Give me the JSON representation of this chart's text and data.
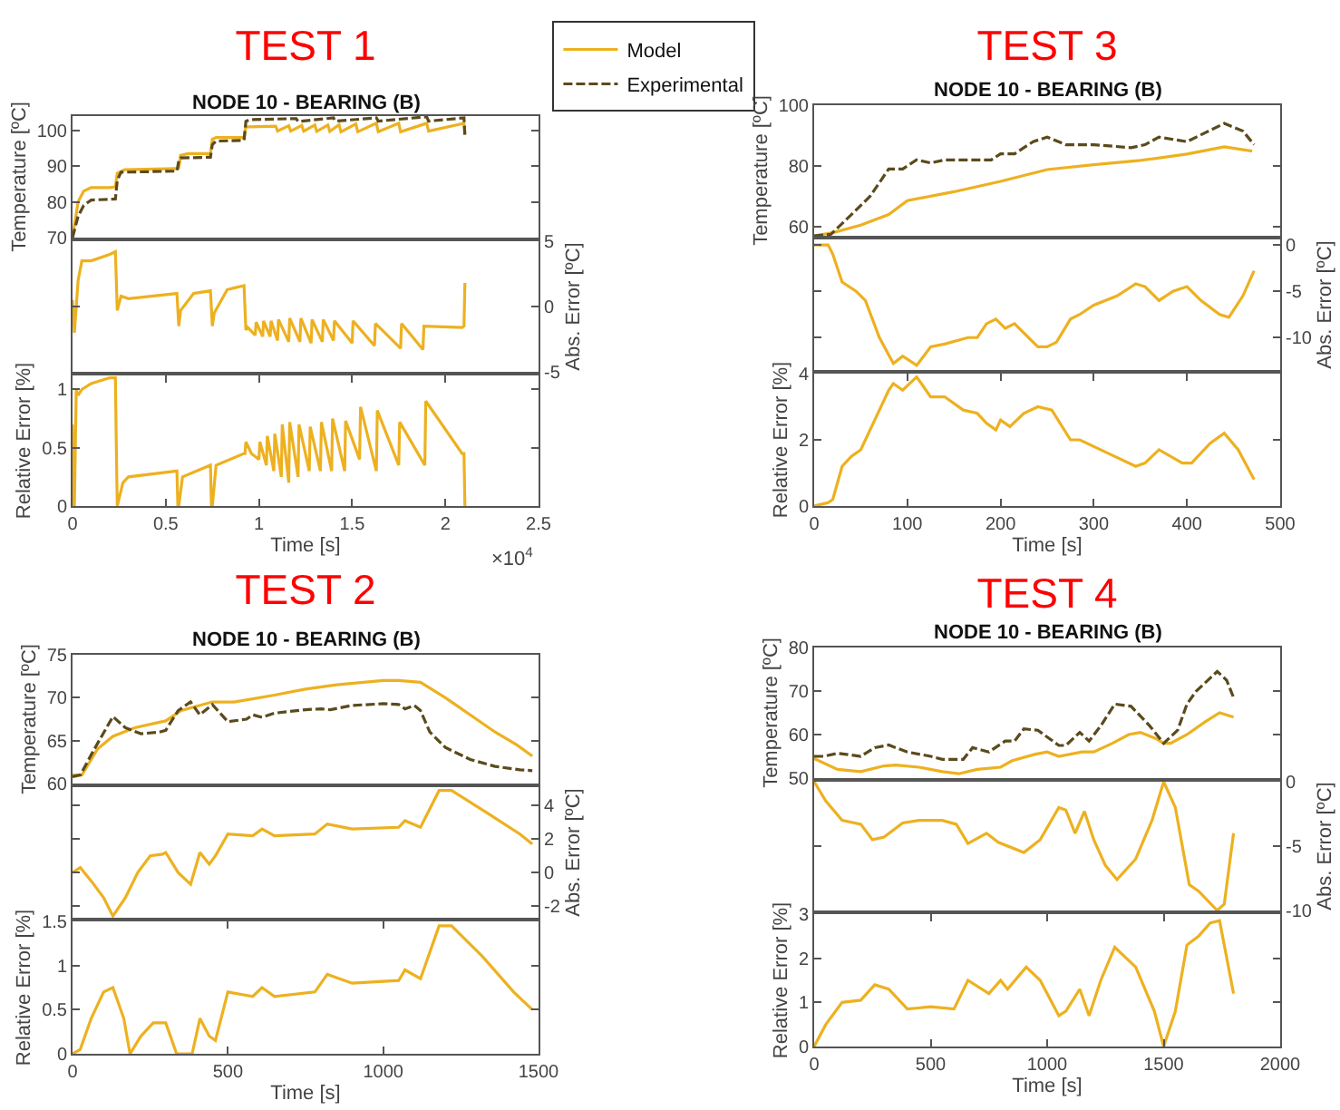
{
  "chart_data": [
    {
      "type": "line",
      "title": "TEST 1",
      "subtitle": "NODE 10 - BEARING (B)",
      "ylabel": "Temperature [ºC]",
      "legend": "top",
      "tick_labels": "y",
      "xlim": [
        0,
        2.5
      ],
      "ylim": [
        70,
        104
      ],
      "yticks": [
        70,
        80,
        90,
        100
      ],
      "series": [
        {
          "name": "Model",
          "color": "#edb120",
          "line_style": "solid",
          "x": [
            0,
            0.03,
            0.06,
            0.1,
            0.2,
            0.23,
            0.24,
            0.28,
            0.56,
            0.57,
            0.58,
            0.62,
            0.74,
            0.75,
            0.77,
            0.82,
            0.92,
            0.93,
            0.95,
            1.09,
            1.1,
            1.16,
            1.17,
            1.23,
            1.24,
            1.3,
            1.31,
            1.37,
            1.38,
            1.43,
            1.44,
            1.52,
            1.53,
            1.63,
            1.64,
            1.75,
            1.76,
            1.9,
            1.91,
            2.1,
            2.105
          ],
          "values": [
            70,
            80,
            83,
            84,
            84,
            84.2,
            88,
            89,
            89.3,
            89.5,
            93,
            93.5,
            93.5,
            97.5,
            98,
            98,
            98,
            101,
            101,
            101.2,
            99.8,
            101.3,
            99.8,
            101.4,
            99.8,
            101.5,
            99.7,
            101.5,
            99.7,
            101.6,
            99.6,
            101.8,
            99.6,
            102,
            99.6,
            102,
            99.6,
            102,
            99.8,
            102,
            99
          ]
        },
        {
          "name": "Experimental",
          "color": "#5b4a1c",
          "line_style": "dashed",
          "x": [
            0,
            0.03,
            0.06,
            0.1,
            0.23,
            0.24,
            0.26,
            0.56,
            0.57,
            0.58,
            0.74,
            0.75,
            0.77,
            0.92,
            0.93,
            0.95,
            1.2,
            1.21,
            1.4,
            1.41,
            1.63,
            1.64,
            1.9,
            1.91,
            2.1,
            2.105
          ],
          "values": [
            70,
            76,
            79,
            80.5,
            80.8,
            86,
            88.3,
            88.6,
            91.5,
            92.3,
            92.5,
            96,
            97,
            97.2,
            102.5,
            103,
            103.3,
            102.5,
            103.5,
            102.6,
            103.5,
            102.6,
            103.8,
            102.6,
            103.5,
            98.5
          ]
        }
      ]
    },
    {
      "type": "line",
      "ylabel": "Abs. Error [ºC]",
      "tick_labels": "y",
      "xlim": [
        0,
        2.5
      ],
      "ylim": [
        -5,
        5
      ],
      "yticks": [
        -5,
        0,
        5
      ],
      "series": [
        {
          "color": "#edb120",
          "x": [
            0,
            0.01,
            0.03,
            0.05,
            0.1,
            0.2,
            0.23,
            0.24,
            0.26,
            0.3,
            0.56,
            0.57,
            0.58,
            0.65,
            0.74,
            0.75,
            0.76,
            0.83,
            0.92,
            0.93,
            0.94,
            0.98,
            0.985,
            1.02,
            1.025,
            1.06,
            1.065,
            1.1,
            1.105,
            1.16,
            1.165,
            1.22,
            1.225,
            1.28,
            1.285,
            1.34,
            1.345,
            1.4,
            1.405,
            1.5,
            1.505,
            1.62,
            1.625,
            1.76,
            1.765,
            1.88,
            1.885,
            2.09,
            2.1,
            2.105
          ],
          "values": [
            0.5,
            -2,
            2,
            3.5,
            3.5,
            4,
            4.2,
            -0.3,
            0.8,
            0.6,
            1,
            -1.5,
            -0.3,
            1,
            1.2,
            -1.5,
            -0.5,
            1.3,
            1.6,
            -1.8,
            -1.6,
            -2.2,
            -1.2,
            -2.3,
            -1.1,
            -2.3,
            -1.1,
            -2.6,
            -1.0,
            -2.7,
            -0.9,
            -2.7,
            -0.9,
            -2.8,
            -1.0,
            -2.7,
            -1.0,
            -2.6,
            -1.1,
            -2.8,
            -1.1,
            -3.0,
            -1.3,
            -3.2,
            -1.3,
            -3.3,
            -1.5,
            -1.6,
            -1.5,
            1.8
          ]
        }
      ]
    },
    {
      "type": "line",
      "ylabel": "Relative Error [%]",
      "xlabel": "Time [s]",
      "annotations": [
        "×10$^{4}$"
      ],
      "xlim": [
        0,
        2.5
      ],
      "xticks": [
        0,
        0.5,
        1,
        1.5,
        2,
        2.5
      ],
      "ylim": [
        0,
        1.12
      ],
      "yticks": [
        0,
        0.5,
        1
      ],
      "series": [
        {
          "color": "#edb120",
          "x": [
            0,
            0.005,
            0.01,
            0.02,
            0.03,
            0.05,
            0.1,
            0.2,
            0.23,
            0.235,
            0.24,
            0.27,
            0.3,
            0.56,
            0.565,
            0.57,
            0.59,
            0.74,
            0.745,
            0.75,
            0.77,
            0.92,
            0.925,
            0.93,
            0.96,
            1.0,
            1.005,
            1.04,
            1.045,
            1.08,
            1.085,
            1.12,
            1.125,
            1.16,
            1.165,
            1.21,
            1.215,
            1.27,
            1.275,
            1.33,
            1.335,
            1.39,
            1.395,
            1.46,
            1.465,
            1.54,
            1.545,
            1.63,
            1.635,
            1.75,
            1.755,
            1.89,
            1.895,
            2.09,
            2.1,
            2.105
          ],
          "values": [
            0.7,
            0,
            0,
            1.0,
            0.95,
            1.0,
            1.05,
            1.1,
            1.1,
            0.5,
            0,
            0.2,
            0.25,
            0.3,
            0,
            0,
            0.25,
            0.35,
            0,
            0,
            0.35,
            0.45,
            0.45,
            0.55,
            0.45,
            0.4,
            0.55,
            0.35,
            0.6,
            0.3,
            0.62,
            0.25,
            0.7,
            0.2,
            0.72,
            0.25,
            0.7,
            0.3,
            0.68,
            0.3,
            0.72,
            0.3,
            0.75,
            0.3,
            0.73,
            0.4,
            0.85,
            0.3,
            0.82,
            0.35,
            0.72,
            0.35,
            0.9,
            0.45,
            0.45,
            0
          ]
        }
      ]
    },
    {
      "type": "line",
      "title": "TEST 3",
      "subtitle": "NODE 10 - BEARING (B)",
      "ylabel": "Temperature [ºC]",
      "tick_labels": "y",
      "xlim": [
        0,
        500
      ],
      "ylim": [
        57,
        100
      ],
      "yticks": [
        60,
        80,
        100
      ],
      "series": [
        {
          "color": "#edb120",
          "line_style": "solid",
          "x": [
            0,
            20,
            50,
            80,
            100,
            150,
            200,
            250,
            300,
            350,
            400,
            440,
            470
          ],
          "values": [
            57,
            58,
            60.5,
            64,
            68.6,
            71.5,
            74.9,
            78.8,
            80.4,
            81.8,
            83.9,
            86.3,
            84.9
          ]
        },
        {
          "color": "#5b4a1c",
          "line_style": "dashed",
          "x": [
            0,
            18,
            40,
            60,
            80,
            95,
            110,
            125,
            140,
            190,
            200,
            215,
            235,
            250,
            270,
            300,
            340,
            355,
            370,
            400,
            420,
            440,
            460,
            472
          ],
          "values": [
            57,
            57.5,
            64,
            70,
            79,
            79,
            82,
            81,
            82,
            82,
            84,
            84,
            88,
            89.5,
            87,
            87,
            86,
            87,
            89.5,
            88,
            91,
            94,
            91.5,
            87
          ]
        }
      ]
    },
    {
      "type": "line",
      "ylabel": "Abs. Error [ºC]",
      "tick_labels": "y",
      "xlim": [
        0,
        500
      ],
      "ylim": [
        -13.5,
        0.6
      ],
      "yticks": [
        -10,
        -5,
        0
      ],
      "series": [
        {
          "color": "#edb120",
          "x": [
            0,
            15,
            20,
            30,
            45,
            55,
            70,
            85,
            95,
            110,
            125,
            140,
            165,
            175,
            185,
            195,
            205,
            215,
            230,
            240,
            250,
            260,
            275,
            285,
            300,
            325,
            345,
            355,
            370,
            385,
            400,
            415,
            435,
            445,
            460,
            472
          ],
          "values": [
            0,
            0,
            -1,
            -4,
            -5,
            -6,
            -10,
            -12.8,
            -12,
            -13,
            -11,
            -10.7,
            -10,
            -10,
            -8.5,
            -8,
            -9,
            -8.5,
            -10,
            -11,
            -11,
            -10.5,
            -8,
            -7.5,
            -6.5,
            -5.5,
            -4.2,
            -4.5,
            -6,
            -5,
            -4.5,
            -6,
            -7.5,
            -7.8,
            -5.5,
            -2.8
          ]
        }
      ]
    },
    {
      "type": "line",
      "ylabel": "Relative Error [%]",
      "xlabel": "Time [s]",
      "xlim": [
        0,
        500
      ],
      "xticks": [
        0,
        100,
        200,
        300,
        400,
        500
      ],
      "ylim": [
        0,
        4
      ],
      "yticks": [
        0,
        2,
        4
      ],
      "series": [
        {
          "color": "#edb120",
          "x": [
            0,
            15,
            20,
            30,
            40,
            50,
            65,
            80,
            85,
            95,
            110,
            125,
            140,
            160,
            175,
            185,
            195,
            200,
            210,
            225,
            240,
            255,
            275,
            285,
            315,
            345,
            355,
            370,
            395,
            405,
            425,
            440,
            455,
            472
          ],
          "values": [
            0,
            0.1,
            0.2,
            1.2,
            1.5,
            1.7,
            2.6,
            3.5,
            3.7,
            3.5,
            3.9,
            3.3,
            3.3,
            2.9,
            2.8,
            2.5,
            2.3,
            2.6,
            2.4,
            2.8,
            3.0,
            2.9,
            2.0,
            2.0,
            1.6,
            1.2,
            1.3,
            1.7,
            1.3,
            1.3,
            1.9,
            2.2,
            1.7,
            0.8
          ]
        }
      ]
    },
    {
      "type": "line",
      "title": "TEST 2",
      "subtitle": "NODE 10 - BEARING (B)",
      "ylabel": "Temperature [ºC]",
      "tick_labels": "y",
      "xlim": [
        0,
        1500
      ],
      "ylim": [
        60,
        75
      ],
      "yticks": [
        60,
        65,
        70,
        75
      ],
      "series": [
        {
          "color": "#edb120",
          "line_style": "solid",
          "x": [
            0,
            30,
            80,
            130,
            200,
            300,
            350,
            450,
            520,
            650,
            750,
            850,
            1000,
            1050,
            1120,
            1200,
            1280,
            1360,
            1430,
            1480
          ],
          "values": [
            61,
            61,
            64,
            65.5,
            66.5,
            67.3,
            68.5,
            69.5,
            69.5,
            70.3,
            71,
            71.5,
            72,
            72,
            71.8,
            70,
            68,
            66,
            64.5,
            63.2
          ]
        },
        {
          "color": "#5b4a1c",
          "line_style": "dashed",
          "x": [
            0,
            25,
            70,
            130,
            170,
            220,
            280,
            300,
            340,
            380,
            410,
            450,
            500,
            560,
            580,
            610,
            650,
            750,
            800,
            830,
            900,
            1000,
            1050,
            1070,
            1100,
            1120,
            1150,
            1200,
            1280,
            1360,
            1440,
            1480
          ],
          "values": [
            60.8,
            61,
            64,
            67.8,
            66.5,
            65.8,
            66,
            66.2,
            68.5,
            69.5,
            68,
            69.2,
            67.2,
            67.5,
            68,
            67.7,
            68.2,
            68.6,
            68.7,
            68.6,
            69.1,
            69.3,
            69.2,
            68.7,
            69.1,
            68.5,
            66,
            64.2,
            62.8,
            62,
            61.6,
            61.5
          ]
        }
      ]
    },
    {
      "type": "line",
      "ylabel": "Abs. Error [ºC]",
      "tick_labels": "y",
      "xlim": [
        0,
        1500
      ],
      "ylim": [
        -2.7,
        5.1
      ],
      "yticks": [
        -2,
        0,
        2,
        4
      ],
      "series": [
        {
          "color": "#edb120",
          "x": [
            0,
            25,
            60,
            100,
            130,
            170,
            210,
            250,
            290,
            300,
            340,
            380,
            410,
            440,
            460,
            500,
            580,
            610,
            650,
            780,
            820,
            900,
            1050,
            1070,
            1120,
            1180,
            1220,
            1340,
            1440,
            1480
          ],
          "values": [
            0,
            0.3,
            -0.5,
            -1.5,
            -2.6,
            -1.5,
            0,
            1,
            1.1,
            1.2,
            0,
            -0.7,
            1.2,
            0.5,
            1,
            2.3,
            2.2,
            2.6,
            2.2,
            2.3,
            2.9,
            2.6,
            2.7,
            3.1,
            2.7,
            4.9,
            4.9,
            3.5,
            2.3,
            1.7
          ]
        }
      ]
    },
    {
      "type": "line",
      "ylabel": "Relative Error [%]",
      "xlabel": "Time [s]",
      "xlim": [
        0,
        1500
      ],
      "xticks": [
        0,
        500,
        1000,
        1500
      ],
      "ylim": [
        0,
        1.5
      ],
      "yticks": [
        0,
        0.5,
        1,
        1.5
      ],
      "series": [
        {
          "color": "#edb120",
          "x": [
            0,
            25,
            60,
            100,
            130,
            165,
            185,
            220,
            260,
            300,
            335,
            385,
            410,
            440,
            460,
            500,
            580,
            610,
            650,
            780,
            820,
            900,
            1050,
            1070,
            1120,
            1180,
            1220,
            1320,
            1420,
            1480
          ],
          "values": [
            0,
            0.05,
            0.4,
            0.7,
            0.75,
            0.4,
            0,
            0.2,
            0.35,
            0.35,
            0,
            0,
            0.4,
            0.2,
            0.15,
            0.7,
            0.65,
            0.75,
            0.65,
            0.7,
            0.9,
            0.8,
            0.83,
            0.95,
            0.85,
            1.45,
            1.45,
            1.1,
            0.7,
            0.5
          ]
        }
      ]
    },
    {
      "type": "line",
      "title": "TEST 4",
      "subtitle": "NODE 10 - BEARING (B)",
      "ylabel": "Temperature [ºC]",
      "tick_labels": "y",
      "xlim": [
        0,
        2000
      ],
      "ylim": [
        50,
        80
      ],
      "yticks": [
        50,
        60,
        70,
        80
      ],
      "series": [
        {
          "color": "#edb120",
          "line_style": "solid",
          "x": [
            0,
            100,
            200,
            300,
            350,
            450,
            550,
            620,
            700,
            800,
            850,
            950,
            1000,
            1050,
            1150,
            1200,
            1280,
            1350,
            1400,
            1470,
            1500,
            1530,
            1600,
            1680,
            1740,
            1800
          ],
          "values": [
            54.5,
            52,
            51.5,
            52.8,
            53,
            52.5,
            51.5,
            51,
            52,
            52.5,
            54,
            55.5,
            56,
            55,
            56,
            56,
            58,
            60,
            60.5,
            59,
            58,
            58,
            60,
            63,
            65,
            64
          ]
        },
        {
          "color": "#5b4a1c",
          "line_style": "dashed",
          "x": [
            0,
            40,
            100,
            200,
            260,
            320,
            400,
            500,
            550,
            640,
            680,
            750,
            820,
            860,
            900,
            960,
            1050,
            1080,
            1140,
            1180,
            1230,
            1290,
            1360,
            1440,
            1500,
            1560,
            1600,
            1640,
            1700,
            1730,
            1770,
            1800
          ],
          "values": [
            55,
            55,
            55.7,
            55,
            57,
            57.6,
            56,
            55,
            54.3,
            54.3,
            57,
            56,
            58.5,
            58.5,
            61.3,
            61,
            57.5,
            57.5,
            60.5,
            58.5,
            62,
            67,
            66.5,
            62,
            58,
            61,
            67,
            70,
            73,
            74.5,
            72.5,
            68.5
          ]
        }
      ]
    },
    {
      "type": "line",
      "ylabel": "Abs. Error [ºC]",
      "tick_labels": "y",
      "xlim": [
        0,
        2000
      ],
      "ylim": [
        -10,
        0
      ],
      "yticks": [
        -10,
        -5,
        0
      ],
      "series": [
        {
          "color": "#edb120",
          "x": [
            0,
            50,
            120,
            200,
            250,
            300,
            380,
            450,
            550,
            610,
            660,
            740,
            790,
            900,
            970,
            1050,
            1080,
            1120,
            1160,
            1200,
            1250,
            1300,
            1380,
            1450,
            1500,
            1550,
            1610,
            1650,
            1730,
            1760,
            1800
          ],
          "values": [
            0,
            -1.5,
            -3,
            -3.3,
            -4.5,
            -4.3,
            -3.2,
            -3,
            -3,
            -3.3,
            -4.8,
            -4,
            -4.7,
            -5.5,
            -4.5,
            -2,
            -2.2,
            -4,
            -2.3,
            -4.5,
            -6.5,
            -7.6,
            -6,
            -3,
            0,
            -2,
            -8,
            -8.5,
            -10,
            -9.5,
            -4
          ]
        }
      ]
    },
    {
      "type": "line",
      "ylabel": "Relative Error [%]",
      "xlabel": "Time [s]",
      "xlim": [
        0,
        2000
      ],
      "xticks": [
        0,
        500,
        1000,
        1500,
        2000
      ],
      "ylim": [
        0,
        3
      ],
      "yticks": [
        0,
        1,
        2,
        3
      ],
      "series": [
        {
          "color": "#edb120",
          "x": [
            0,
            50,
            120,
            200,
            260,
            320,
            400,
            500,
            600,
            660,
            750,
            800,
            830,
            910,
            970,
            1050,
            1080,
            1140,
            1180,
            1230,
            1290,
            1380,
            1460,
            1500,
            1550,
            1600,
            1650,
            1700,
            1740,
            1800
          ],
          "values": [
            0,
            0.5,
            1,
            1.05,
            1.4,
            1.3,
            0.85,
            0.9,
            0.85,
            1.5,
            1.2,
            1.5,
            1.3,
            1.8,
            1.5,
            0.7,
            0.8,
            1.3,
            0.7,
            1.5,
            2.25,
            1.8,
            0.8,
            0,
            0.8,
            2.3,
            2.5,
            2.8,
            2.85,
            1.2
          ]
        }
      ]
    }
  ]
}
